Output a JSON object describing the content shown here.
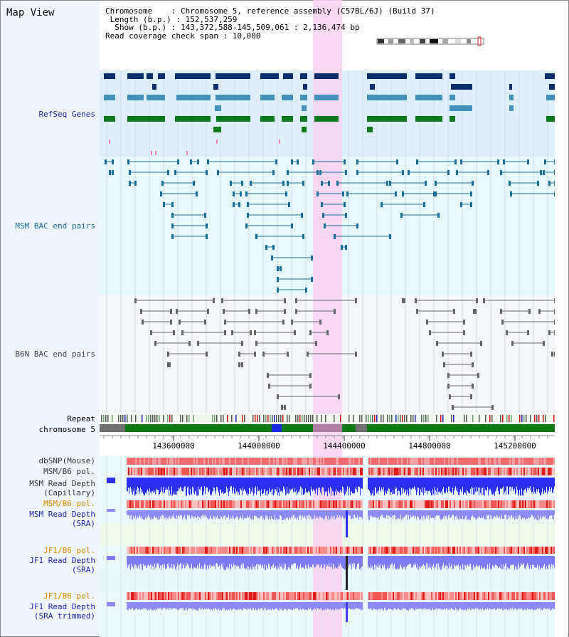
{
  "map_title": "Map View",
  "info": {
    "chromosome": "Chromosome    : Chromosome 5, reference assembly (C57BL/6J) (Build 37)",
    "length": " Length (b.p.) : 152,537,259",
    "show": "  Show (b.p.) : 143,372,588-145,509,061 : 2,136,474 bp",
    "coverage": "Read coverage check span : 10,000"
  },
  "tracks": {
    "refseq": "RefSeq Genes",
    "msm_bac": "MSM BAC end pairs",
    "b6n_bac": "B6N BAC end pairs",
    "repeat": "Repeat",
    "chromosome": "chromosome 5",
    "dbsnp": "dbSNP(Mouse)",
    "msm_b6_pol": "MSM/B6 pol.",
    "msm_depth_cap_1": "MSM Read Depth",
    "msm_depth_cap_2": "(Capillary)",
    "msm_b6_pol2": "MSM/B6 pol.",
    "msm_depth_sra_1": "MSM Read Depth",
    "msm_depth_sra_2": "(SRA)",
    "jf1_b6_pol": "JF1/B6 pol.",
    "jf1_depth_sra_1": "JF1 Read Depth",
    "jf1_depth_sra_2": "(SRA)",
    "jf1_b6_pol2": "JF1/B6 pol.",
    "jf1_depth_trim_1": "JF1 Read Depth",
    "jf1_depth_trim_2": "(SRA trimmed)"
  },
  "axis": {
    "ticks": [
      "143600000",
      "144000000",
      "144400000",
      "144800000",
      "145200000"
    ]
  },
  "colors": {
    "highlight": "#f8d2f0",
    "refseq_bg": "#ddf0fa",
    "msm_bg": "#e6f9fc",
    "b6n_bg": "#f6f7fb",
    "gene_dark": "#0b2d6b",
    "gene_mid": "#4590bb",
    "gene_green": "#0b7a1b",
    "msm_line": "#1a6f9a",
    "b6n_line": "#666666",
    "label_blue": "#1a28b0",
    "label_teal": "#1a6f9a",
    "label_orange": "#d98a00"
  }
}
